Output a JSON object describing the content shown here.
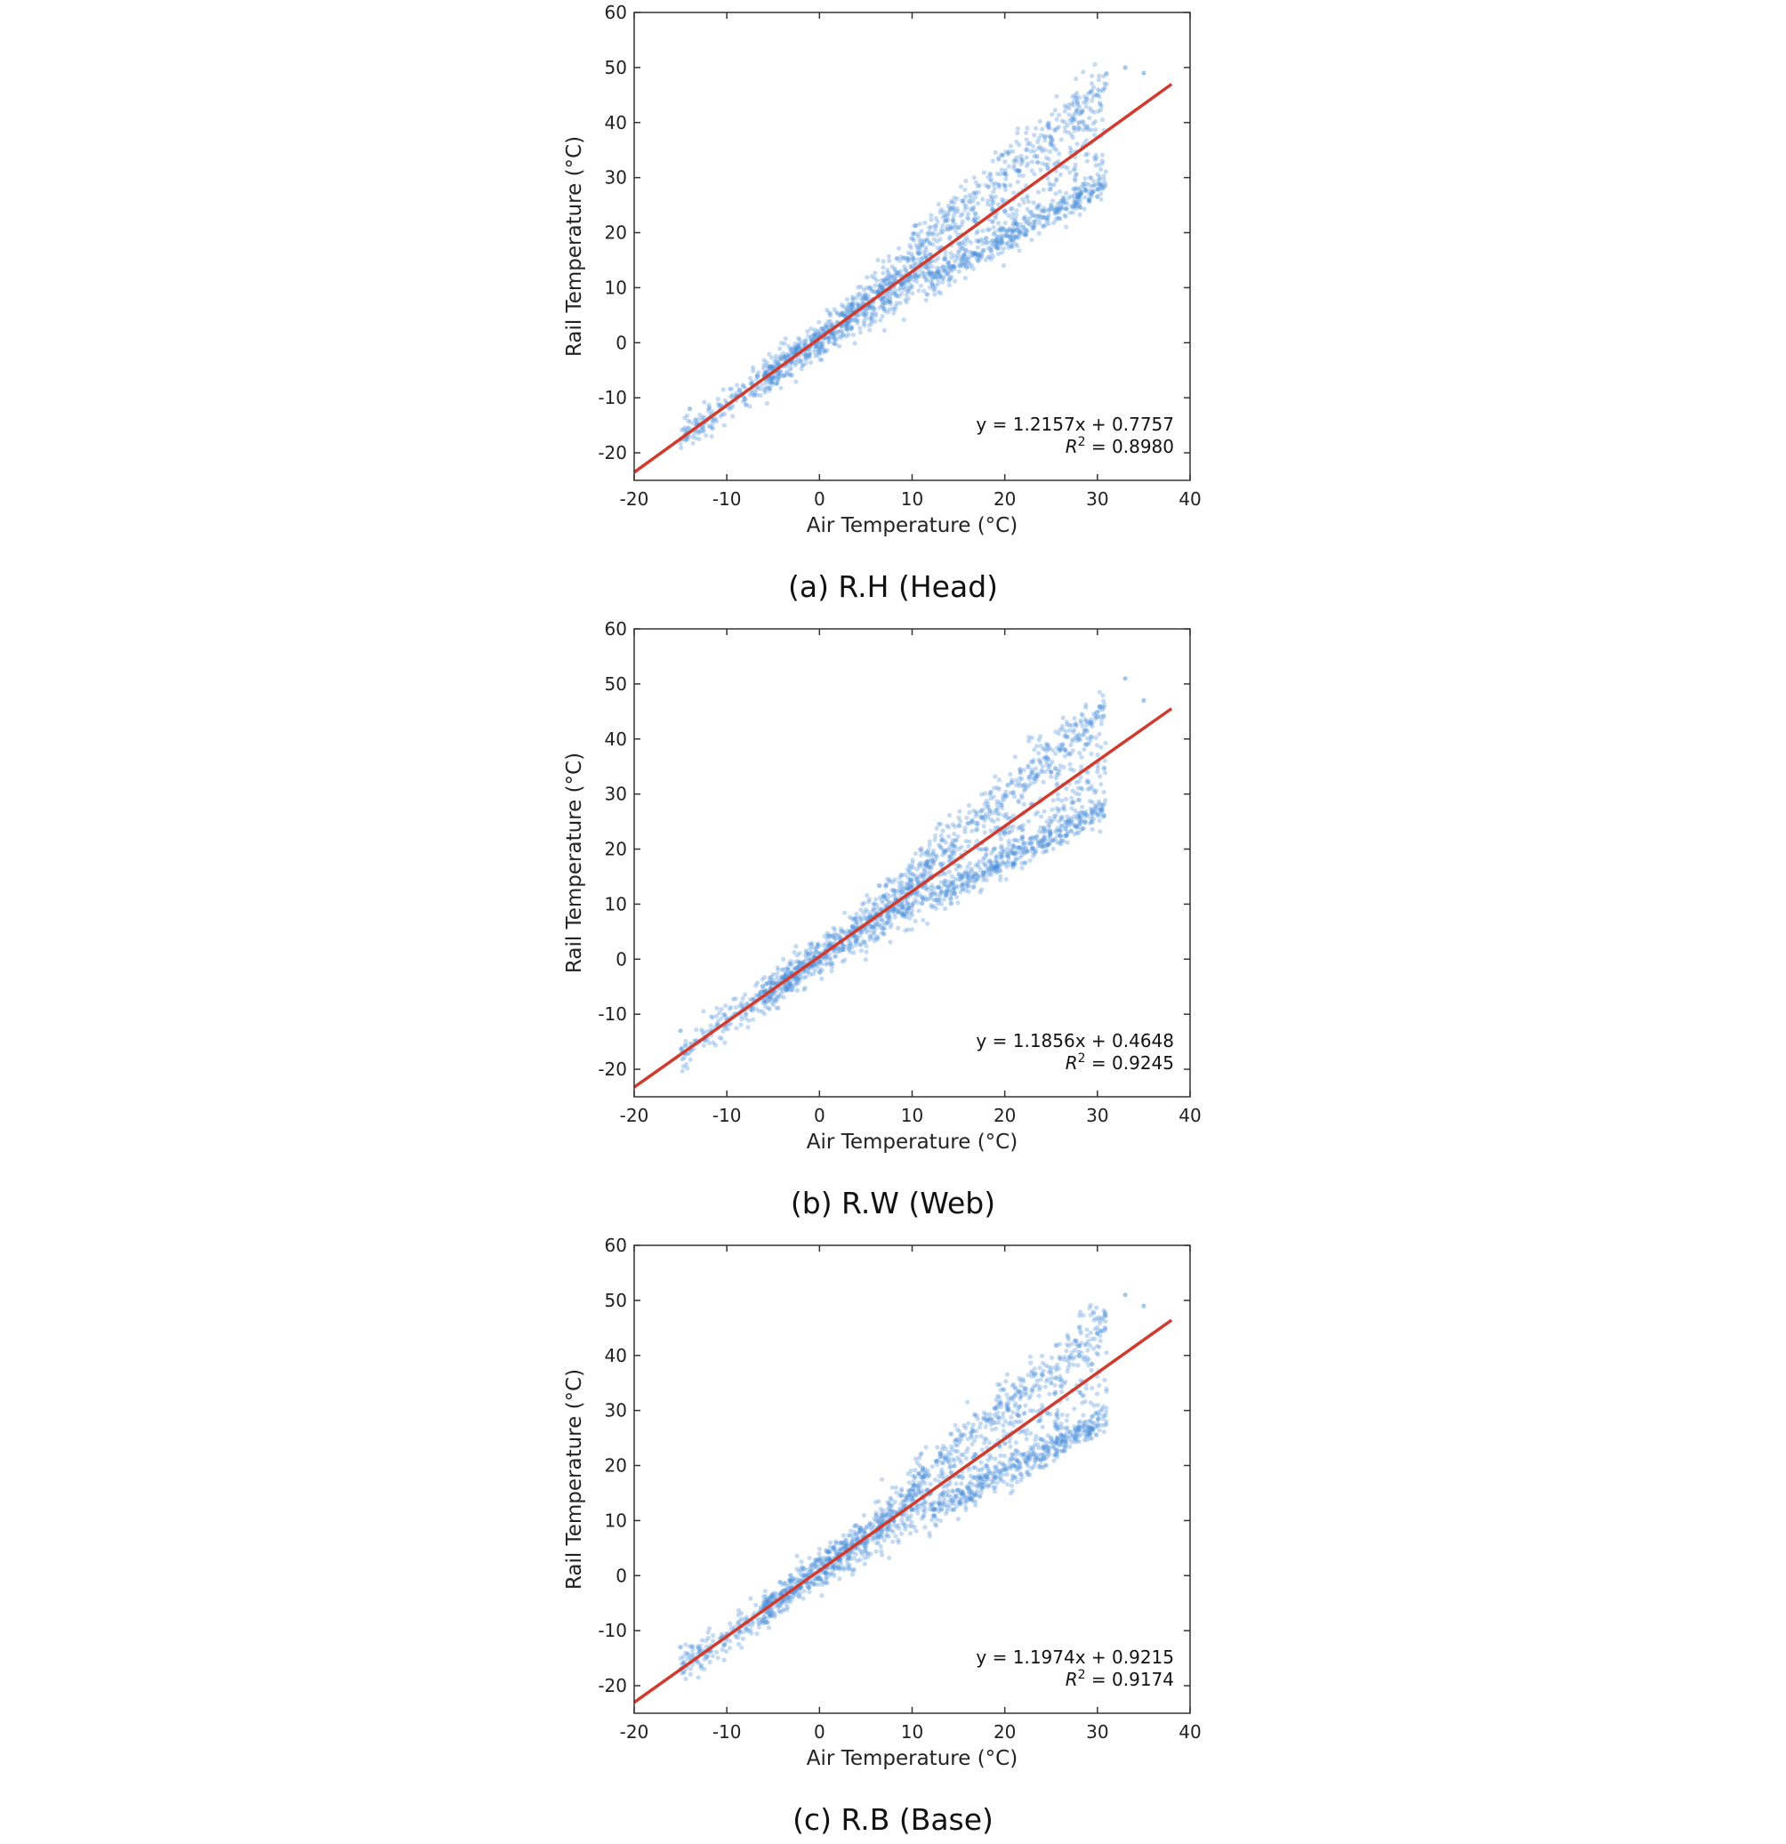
{
  "colors": {
    "points": "#4a90d9",
    "fit_line": "#d13b2e",
    "axes": "#333333"
  },
  "chart_data": [
    {
      "type": "scatter",
      "caption": "(a) R.H (Head)",
      "xlabel": "Air Temperature (°C)",
      "ylabel": "Rail Temperature (°C)",
      "xlim": [
        -20,
        40
      ],
      "ylim": [
        -25,
        60
      ],
      "xticks": [
        -20,
        -10,
        0,
        10,
        20,
        30,
        40
      ],
      "yticks": [
        -20,
        -10,
        0,
        10,
        20,
        30,
        40,
        50,
        60
      ],
      "equation": "y = 1.2157x + 0.7757",
      "r2_label": "R",
      "r2_text": " = 0.8980",
      "fit": {
        "slope": 1.2157,
        "intercept": 0.7757,
        "x_range": [
          -20,
          38
        ]
      },
      "points_description": "dense cloud of about 2000 air vs rail temperature observations around the fit line",
      "point_sample": [
        [
          -14,
          -12
        ],
        [
          -10,
          -11
        ],
        [
          -6,
          -6
        ],
        [
          -3,
          -3
        ],
        [
          0,
          1
        ],
        [
          2,
          2
        ],
        [
          5,
          8
        ],
        [
          8,
          9
        ],
        [
          10,
          12
        ],
        [
          12,
          16
        ],
        [
          15,
          18
        ],
        [
          18,
          19
        ],
        [
          20,
          24
        ],
        [
          22,
          21
        ],
        [
          25,
          25
        ],
        [
          25,
          36
        ],
        [
          28,
          40
        ],
        [
          30,
          45
        ],
        [
          33,
          50
        ],
        [
          35,
          49
        ]
      ]
    },
    {
      "type": "scatter",
      "caption": "(b) R.W (Web)",
      "xlabel": "Air Temperature (°C)",
      "ylabel": "Rail Temperature (°C)",
      "xlim": [
        -20,
        40
      ],
      "ylim": [
        -25,
        60
      ],
      "xticks": [
        -20,
        -10,
        0,
        10,
        20,
        30,
        40
      ],
      "yticks": [
        -20,
        -10,
        0,
        10,
        20,
        30,
        40,
        50,
        60
      ],
      "equation": "y = 1.1856x + 0.4648",
      "r2_label": "R",
      "r2_text": " = 0.9245",
      "fit": {
        "slope": 1.1856,
        "intercept": 0.4648,
        "x_range": [
          -20,
          38
        ]
      },
      "points_description": "dense cloud of about 2000 air vs rail temperature observations around the fit line",
      "point_sample": [
        [
          -15,
          -13
        ],
        [
          -10,
          -11
        ],
        [
          -6,
          -6
        ],
        [
          -3,
          -3
        ],
        [
          0,
          1
        ],
        [
          2,
          2
        ],
        [
          5,
          6
        ],
        [
          8,
          9
        ],
        [
          10,
          12
        ],
        [
          12,
          15
        ],
        [
          15,
          17
        ],
        [
          18,
          19
        ],
        [
          20,
          23
        ],
        [
          22,
          21
        ],
        [
          25,
          25
        ],
        [
          25,
          34
        ],
        [
          28,
          40
        ],
        [
          30,
          44
        ],
        [
          33,
          51
        ],
        [
          35,
          47
        ]
      ]
    },
    {
      "type": "scatter",
      "caption": "(c) R.B (Base)",
      "xlabel": "Air Temperature (°C)",
      "ylabel": "Rail Temperature (°C)",
      "xlim": [
        -20,
        40
      ],
      "ylim": [
        -25,
        60
      ],
      "xticks": [
        -20,
        -10,
        0,
        10,
        20,
        30,
        40
      ],
      "yticks": [
        -20,
        -10,
        0,
        10,
        20,
        30,
        40,
        50,
        60
      ],
      "equation": "y = 1.1974x + 0.9215",
      "r2_label": "R",
      "r2_text": " = 0.9174",
      "fit": {
        "slope": 1.1974,
        "intercept": 0.9215,
        "x_range": [
          -20,
          38
        ]
      },
      "points_description": "dense cloud of about 2000 air vs rail temperature observations around the fit line",
      "point_sample": [
        [
          -15,
          -13
        ],
        [
          -10,
          -11
        ],
        [
          -6,
          -6
        ],
        [
          -3,
          -3
        ],
        [
          0,
          1
        ],
        [
          2,
          3
        ],
        [
          5,
          7
        ],
        [
          8,
          10
        ],
        [
          10,
          12
        ],
        [
          12,
          15
        ],
        [
          15,
          18
        ],
        [
          18,
          20
        ],
        [
          20,
          24
        ],
        [
          22,
          22
        ],
        [
          25,
          25
        ],
        [
          25,
          35
        ],
        [
          28,
          40
        ],
        [
          30,
          44
        ],
        [
          33,
          51
        ],
        [
          35,
          49
        ]
      ]
    }
  ]
}
